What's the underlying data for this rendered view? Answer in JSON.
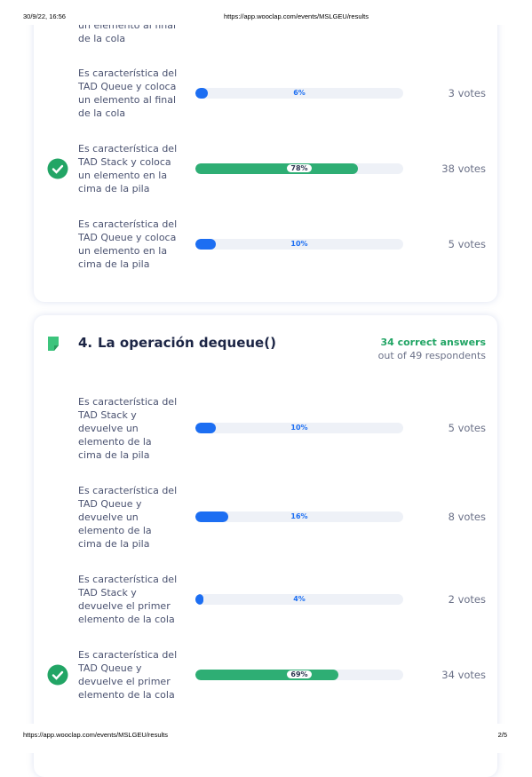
{
  "header": {
    "datetime": "30/9/22, 16:56",
    "url": "https://app.wooclap.com/events/MSLGEU/results"
  },
  "footer": {
    "url": "https://app.wooclap.com/events/MSLGEU/results",
    "page": "2/5"
  },
  "previous_question": {
    "partial_text": "un elemento al final de la cola",
    "options": [
      {
        "text": "Es característica del TAD Queue y coloca un elemento al final de la cola",
        "percent": {
          "value": 6,
          "label": "6%"
        },
        "votes": "3 votes",
        "correct": false
      },
      {
        "text": "Es característica del TAD Stack y coloca un elemento en la cima de la pila",
        "percent": {
          "value": 78,
          "label": "78%"
        },
        "votes": "38 votes",
        "correct": true
      },
      {
        "text": "Es característica del TAD Queue y coloca un elemento en la cima de la pila",
        "percent": {
          "value": 10,
          "label": "10%"
        },
        "votes": "5 votes",
        "correct": false
      }
    ]
  },
  "question": {
    "number": "4.",
    "title": "La operación dequeue()",
    "correct_answers": "34 correct answers",
    "respondents": "out of 49 respondents",
    "options": [
      {
        "text": "Es característica del TAD Stack y devuelve un elemento de la cima de la pila",
        "percent": {
          "value": 10,
          "label": "10%"
        },
        "votes": "5 votes",
        "correct": false
      },
      {
        "text": "Es característica del TAD Queue y devuelve un elemento de la cima de la pila",
        "percent": {
          "value": 16,
          "label": "16%"
        },
        "votes": "8 votes",
        "correct": false
      },
      {
        "text": "Es característica del TAD Stack y devuelve el primer elemento de la cola",
        "percent": {
          "value": 4,
          "label": "4%"
        },
        "votes": "2 votes",
        "correct": false
      },
      {
        "text": "Es característica del TAD Queue y devuelve el primer elemento de la cola",
        "percent": {
          "value": 69,
          "label": "69%"
        },
        "votes": "34 votes",
        "correct": true
      }
    ]
  }
}
